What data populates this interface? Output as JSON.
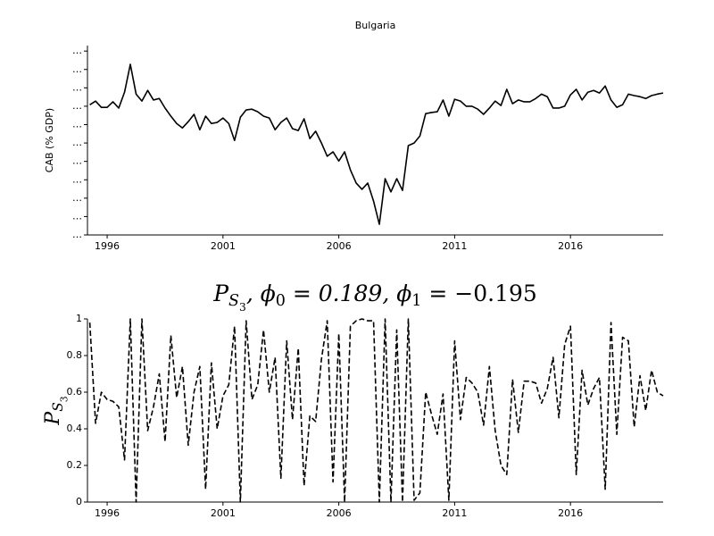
{
  "chart_data": [
    {
      "type": "line",
      "title": "Bulgaria",
      "ylabel": "CAB (% GDP)",
      "x": [
        1995.25,
        1995.5,
        1995.75,
        1996,
        1996.25,
        1996.5,
        1996.75,
        1997,
        1997.25,
        1997.5,
        1997.75,
        1998,
        1998.25,
        1998.5,
        1998.75,
        1999,
        1999.25,
        1999.5,
        1999.75,
        2000,
        2000.25,
        2000.5,
        2000.75,
        2001,
        2001.25,
        2001.5,
        2001.75,
        2002,
        2002.25,
        2002.5,
        2002.75,
        2003,
        2003.25,
        2003.5,
        2003.75,
        2004,
        2004.25,
        2004.5,
        2004.75,
        2005,
        2005.25,
        2005.5,
        2005.75,
        2006,
        2006.25,
        2006.5,
        2006.75,
        2007,
        2007.25,
        2007.5,
        2007.75,
        2008,
        2008.25,
        2008.5,
        2008.75,
        2009,
        2009.25,
        2009.5,
        2009.75,
        2010,
        2010.25,
        2010.5,
        2010.75,
        2011,
        2011.25,
        2011.5,
        2011.75,
        2012,
        2012.25,
        2012.5,
        2012.75,
        2013,
        2013.25,
        2013.5,
        2013.75,
        2014,
        2014.25,
        2014.5,
        2014.75,
        2015,
        2015.25,
        2015.5,
        2015.75,
        2016,
        2016.25,
        2016.5,
        2016.75,
        2017,
        2017.25,
        2017.5,
        2017.75,
        2018,
        2018.25,
        2018.5,
        2018.75,
        2019,
        2019.25,
        2019.5,
        2019.75,
        2020
      ],
      "values": [
        5.4,
        6.4,
        4.7,
        4.7,
        6.2,
        4.5,
        8.8,
        16.4,
        8.3,
        6.4,
        9.3,
        6.7,
        7.1,
        4.5,
        2.3,
        0.3,
        -0.9,
        0.8,
        2.8,
        -1.4,
        2.3,
        0.3,
        0.6,
        1.8,
        0.3,
        -4.3,
        2.0,
        4.0,
        4.2,
        3.5,
        2.3,
        1.8,
        -1.4,
        0.6,
        1.8,
        -1.1,
        -1.6,
        1.6,
        -3.8,
        -1.8,
        -5.0,
        -8.6,
        -7.4,
        -9.9,
        -7.4,
        -12.3,
        -15.9,
        -17.6,
        -15.9,
        -20.8,
        -27.1,
        -14.7,
        -18.3,
        -14.7,
        -17.9,
        -5.7,
        -5.0,
        -3.1,
        3.0,
        3.3,
        3.5,
        6.7,
        2.3,
        6.9,
        6.4,
        5.0,
        5.0,
        4.2,
        2.8,
        4.5,
        6.4,
        5.2,
        9.6,
        5.7,
        6.7,
        6.2,
        6.2,
        7.1,
        8.3,
        7.6,
        4.5,
        4.5,
        5.0,
        8.1,
        9.6,
        6.7,
        8.8,
        9.3,
        8.6,
        10.5,
        6.7,
        4.7,
        5.4,
        8.3,
        7.9,
        7.6,
        7.1,
        7.9,
        8.3,
        8.6
      ],
      "color": "#000000",
      "linestyle": "solid",
      "xlim": [
        1995.15,
        2020
      ],
      "ylim": [
        -30,
        21.5
      ],
      "xticks": [
        1996,
        2001,
        2006,
        2011,
        2016
      ],
      "yticks": [
        {
          "value": -30,
          "label": "…"
        },
        {
          "value": -25,
          "label": "…"
        },
        {
          "value": -20,
          "label": "…"
        },
        {
          "value": -15,
          "label": "…"
        },
        {
          "value": -10,
          "label": "…"
        },
        {
          "value": -5,
          "label": "…"
        },
        {
          "value": 0,
          "label": "…"
        },
        {
          "value": 5,
          "label": "…"
        },
        {
          "value": 10,
          "label": "…"
        },
        {
          "value": 15,
          "label": "…"
        },
        {
          "value": 20,
          "label": "…"
        }
      ]
    },
    {
      "type": "line",
      "title": [
        "P",
        "S",
        "3",
        ", ϕ",
        "0",
        " = 0.189, ϕ",
        "1",
        " = −0.195"
      ],
      "ylabel": [
        "P",
        "S",
        "3"
      ],
      "x": [
        1995.25,
        1995.5,
        1995.75,
        1996,
        1996.25,
        1996.5,
        1996.75,
        1997,
        1997.25,
        1997.5,
        1997.75,
        1998,
        1998.25,
        1998.5,
        1998.75,
        1999,
        1999.25,
        1999.5,
        1999.75,
        2000,
        2000.25,
        2000.5,
        2000.75,
        2001,
        2001.25,
        2001.5,
        2001.75,
        2002,
        2002.25,
        2002.5,
        2002.75,
        2003,
        2003.25,
        2003.5,
        2003.75,
        2004,
        2004.25,
        2004.5,
        2004.75,
        2005,
        2005.25,
        2005.5,
        2005.75,
        2006,
        2006.25,
        2006.5,
        2006.75,
        2007,
        2007.25,
        2007.5,
        2007.75,
        2008,
        2008.25,
        2008.5,
        2008.75,
        2009,
        2009.25,
        2009.5,
        2009.75,
        2010,
        2010.25,
        2010.5,
        2010.75,
        2011,
        2011.25,
        2011.5,
        2011.75,
        2012,
        2012.25,
        2012.5,
        2012.75,
        2013,
        2013.25,
        2013.5,
        2013.75,
        2014,
        2014.25,
        2014.5,
        2014.75,
        2015,
        2015.25,
        2015.5,
        2015.75,
        2016,
        2016.25,
        2016.5,
        2016.75,
        2017,
        2017.25,
        2017.5,
        2017.75,
        2018,
        2018.25,
        2018.5,
        2018.75,
        2019,
        2019.25,
        2019.5,
        2019.75,
        2020
      ],
      "values": [
        0.98,
        0.43,
        0.6,
        0.56,
        0.55,
        0.52,
        0.23,
        1.0,
        0,
        1.0,
        0.39,
        0.52,
        0.7,
        0.33,
        0.91,
        0.57,
        0.74,
        0.31,
        0.6,
        0.74,
        0.07,
        0.76,
        0.4,
        0.58,
        0.64,
        0.96,
        0,
        0.99,
        0.56,
        0.64,
        0.94,
        0.6,
        0.79,
        0.13,
        0.88,
        0.45,
        0.84,
        0.09,
        0.47,
        0.44,
        0.78,
        0.99,
        0.11,
        0.92,
        0,
        0.96,
        0.99,
        1,
        0.99,
        0.99,
        0,
        1,
        0,
        0.94,
        0,
        1,
        0.01,
        0.05,
        0.6,
        0.48,
        0.37,
        0.59,
        0.01,
        0.88,
        0.45,
        0.68,
        0.65,
        0.6,
        0.42,
        0.74,
        0.39,
        0.2,
        0.15,
        0.67,
        0.38,
        0.66,
        0.66,
        0.65,
        0.54,
        0.62,
        0.79,
        0.46,
        0.86,
        0.96,
        0.15,
        0.72,
        0.53,
        0.62,
        0.68,
        0.07,
        0.98,
        0.37,
        0.9,
        0.88,
        0.41,
        0.69,
        0.5,
        0.72,
        0.6,
        0.58
      ],
      "color": "#000000",
      "linestyle": "dashed",
      "xlim": [
        1995.15,
        2020
      ],
      "ylim": [
        0,
        1
      ],
      "xticks": [
        1996,
        2001,
        2006,
        2011,
        2016
      ],
      "yticks": [
        0,
        0.2,
        0.4,
        0.6,
        0.8,
        1
      ]
    }
  ]
}
